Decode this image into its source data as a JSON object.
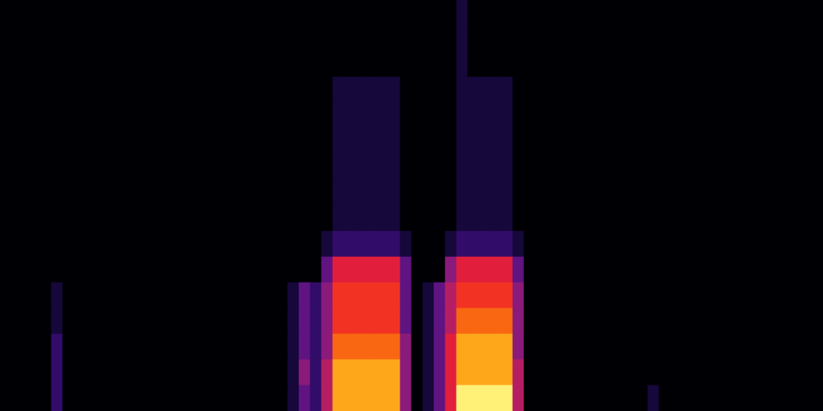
{
  "chart_data": {
    "type": "heatmap",
    "xlim": [
      0,
      64
    ],
    "ylim": [
      0,
      16
    ],
    "grid": false,
    "tick_labels": false,
    "color_range": [
      0,
      10
    ],
    "z": [
      [
        2,
        0,
        0,
        0,
        0,
        0,
        0,
        0,
        0,
        0,
        0,
        0,
        0,
        0,
        0,
        0,
        0,
        0,
        0,
        0,
        0,
        1,
        3,
        2,
        5,
        9,
        9,
        9,
        9,
        9,
        9,
        4,
        0,
        1,
        3,
        6,
        10,
        10,
        10,
        10,
        10,
        5,
        0,
        0,
        0,
        0,
        0,
        0,
        0,
        0,
        0,
        0,
        0,
        1,
        0,
        0,
        0,
        0,
        0,
        0,
        0,
        0,
        0,
        0
      ],
      [
        2,
        0,
        0,
        0,
        0,
        0,
        0,
        0,
        0,
        0,
        0,
        0,
        0,
        0,
        0,
        0,
        0,
        0,
        0,
        0,
        0,
        1,
        4,
        2,
        5,
        9,
        9,
        9,
        9,
        9,
        9,
        4,
        0,
        1,
        3,
        6,
        9,
        9,
        9,
        9,
        9,
        5,
        0,
        0,
        0,
        0,
        0,
        0,
        0,
        0,
        0,
        0,
        0,
        0,
        0,
        0,
        0,
        0,
        0,
        0,
        0,
        0,
        0,
        0
      ],
      [
        2,
        0,
        0,
        0,
        0,
        0,
        0,
        0,
        0,
        0,
        0,
        0,
        0,
        0,
        0,
        0,
        0,
        0,
        0,
        0,
        0,
        1,
        3,
        2,
        4,
        8,
        8,
        8,
        8,
        8,
        8,
        4,
        0,
        1,
        3,
        6,
        9,
        9,
        9,
        9,
        9,
        4,
        0,
        0,
        0,
        0,
        0,
        0,
        0,
        0,
        0,
        0,
        0,
        0,
        0,
        0,
        0,
        0,
        0,
        0,
        0,
        0,
        0,
        0
      ],
      [
        1,
        0,
        0,
        0,
        0,
        0,
        0,
        0,
        0,
        0,
        0,
        0,
        0,
        0,
        0,
        0,
        0,
        0,
        0,
        0,
        0,
        1,
        3,
        2,
        4,
        7,
        7,
        7,
        7,
        7,
        7,
        3,
        0,
        1,
        3,
        5,
        8,
        8,
        8,
        8,
        8,
        4,
        0,
        0,
        0,
        0,
        0,
        0,
        0,
        0,
        0,
        0,
        0,
        0,
        0,
        0,
        0,
        0,
        0,
        0,
        0,
        0,
        0,
        0
      ],
      [
        1,
        0,
        0,
        0,
        0,
        0,
        0,
        0,
        0,
        0,
        0,
        0,
        0,
        0,
        0,
        0,
        0,
        0,
        0,
        0,
        0,
        1,
        3,
        2,
        4,
        7,
        7,
        7,
        7,
        7,
        7,
        3,
        0,
        1,
        3,
        5,
        7,
        7,
        7,
        7,
        7,
        4,
        0,
        0,
        0,
        0,
        0,
        0,
        0,
        0,
        0,
        0,
        0,
        0,
        0,
        0,
        0,
        0,
        0,
        0,
        0,
        0,
        0,
        0
      ],
      [
        0,
        0,
        0,
        0,
        0,
        0,
        0,
        0,
        0,
        0,
        0,
        0,
        0,
        0,
        0,
        0,
        0,
        0,
        0,
        0,
        0,
        0,
        0,
        0,
        3,
        6,
        6,
        6,
        6,
        6,
        6,
        3,
        0,
        0,
        0,
        4,
        6,
        6,
        6,
        6,
        6,
        3,
        0,
        0,
        0,
        0,
        0,
        0,
        0,
        0,
        0,
        0,
        0,
        0,
        0,
        0,
        0,
        0,
        0,
        0,
        0,
        0,
        0,
        0
      ],
      [
        0,
        0,
        0,
        0,
        0,
        0,
        0,
        0,
        0,
        0,
        0,
        0,
        0,
        0,
        0,
        0,
        0,
        0,
        0,
        0,
        0,
        0,
        0,
        0,
        1,
        2,
        2,
        2,
        2,
        2,
        2,
        1,
        0,
        0,
        0,
        1,
        2,
        2,
        2,
        2,
        2,
        1,
        0,
        0,
        0,
        0,
        0,
        0,
        0,
        0,
        0,
        0,
        0,
        0,
        0,
        0,
        0,
        0,
        0,
        0,
        0,
        0,
        0,
        0
      ],
      [
        0,
        0,
        0,
        0,
        0,
        0,
        0,
        0,
        0,
        0,
        0,
        0,
        0,
        0,
        0,
        0,
        0,
        0,
        0,
        0,
        0,
        0,
        0,
        0,
        0,
        1,
        1,
        1,
        1,
        1,
        1,
        0,
        0,
        0,
        0,
        0,
        1,
        1,
        1,
        1,
        1,
        0,
        0,
        0,
        0,
        0,
        0,
        0,
        0,
        0,
        0,
        0,
        0,
        0,
        0,
        0,
        0,
        0,
        0,
        0,
        0,
        0,
        0,
        0
      ],
      [
        0,
        0,
        0,
        0,
        0,
        0,
        0,
        0,
        0,
        0,
        0,
        0,
        0,
        0,
        0,
        0,
        0,
        0,
        0,
        0,
        0,
        0,
        0,
        0,
        0,
        1,
        1,
        1,
        1,
        1,
        1,
        0,
        0,
        0,
        0,
        0,
        1,
        1,
        1,
        1,
        1,
        0,
        0,
        0,
        0,
        0,
        0,
        0,
        0,
        0,
        0,
        0,
        0,
        0,
        0,
        0,
        0,
        0,
        0,
        0,
        0,
        0,
        0,
        0
      ],
      [
        0,
        0,
        0,
        0,
        0,
        0,
        0,
        0,
        0,
        0,
        0,
        0,
        0,
        0,
        0,
        0,
        0,
        0,
        0,
        0,
        0,
        0,
        0,
        0,
        0,
        1,
        1,
        1,
        1,
        1,
        1,
        0,
        0,
        0,
        0,
        0,
        1,
        1,
        1,
        1,
        1,
        0,
        0,
        0,
        0,
        0,
        0,
        0,
        0,
        0,
        0,
        0,
        0,
        0,
        0,
        0,
        0,
        0,
        0,
        0,
        0,
        0,
        0,
        0
      ],
      [
        0,
        0,
        0,
        0,
        0,
        0,
        0,
        0,
        0,
        0,
        0,
        0,
        0,
        0,
        0,
        0,
        0,
        0,
        0,
        0,
        0,
        0,
        0,
        0,
        0,
        1,
        1,
        1,
        1,
        1,
        1,
        0,
        0,
        0,
        0,
        0,
        1,
        1,
        1,
        1,
        1,
        0,
        0,
        0,
        0,
        0,
        0,
        0,
        0,
        0,
        0,
        0,
        0,
        0,
        0,
        0,
        0,
        0,
        0,
        0,
        0,
        0,
        0,
        0
      ],
      [
        0,
        0,
        0,
        0,
        0,
        0,
        0,
        0,
        0,
        0,
        0,
        0,
        0,
        0,
        0,
        0,
        0,
        0,
        0,
        0,
        0,
        0,
        0,
        0,
        0,
        1,
        1,
        1,
        1,
        1,
        1,
        0,
        0,
        0,
        0,
        0,
        1,
        1,
        1,
        1,
        1,
        0,
        0,
        0,
        0,
        0,
        0,
        0,
        0,
        0,
        0,
        0,
        0,
        0,
        0,
        0,
        0,
        0,
        0,
        0,
        0,
        0,
        0,
        0
      ],
      [
        0,
        0,
        0,
        0,
        0,
        0,
        0,
        0,
        0,
        0,
        0,
        0,
        0,
        0,
        0,
        0,
        0,
        0,
        0,
        0,
        0,
        0,
        0,
        0,
        0,
        1,
        1,
        1,
        1,
        1,
        1,
        0,
        0,
        0,
        0,
        0,
        1,
        1,
        1,
        1,
        1,
        0,
        0,
        0,
        0,
        0,
        0,
        0,
        0,
        0,
        0,
        0,
        0,
        0,
        0,
        0,
        0,
        0,
        0,
        0,
        0,
        0,
        0,
        0
      ],
      [
        0,
        0,
        0,
        0,
        0,
        0,
        0,
        0,
        0,
        0,
        0,
        0,
        0,
        0,
        0,
        0,
        0,
        0,
        0,
        0,
        0,
        0,
        0,
        0,
        0,
        0,
        0,
        0,
        0,
        0,
        0,
        0,
        0,
        0,
        0,
        0,
        1,
        0,
        0,
        0,
        0,
        0,
        0,
        0,
        0,
        0,
        0,
        0,
        0,
        0,
        0,
        0,
        0,
        0,
        0,
        0,
        0,
        0,
        0,
        0,
        0,
        0,
        0,
        0
      ],
      [
        0,
        0,
        0,
        0,
        0,
        0,
        0,
        0,
        0,
        0,
        0,
        0,
        0,
        0,
        0,
        0,
        0,
        0,
        0,
        0,
        0,
        0,
        0,
        0,
        0,
        0,
        0,
        0,
        0,
        0,
        0,
        0,
        0,
        0,
        0,
        0,
        1,
        0,
        0,
        0,
        0,
        0,
        0,
        0,
        0,
        0,
        0,
        0,
        0,
        0,
        0,
        0,
        0,
        0,
        0,
        0,
        0,
        0,
        0,
        0,
        0,
        0,
        0,
        0
      ],
      [
        0,
        0,
        0,
        0,
        0,
        0,
        0,
        0,
        0,
        0,
        0,
        0,
        0,
        0,
        0,
        0,
        0,
        0,
        0,
        0,
        0,
        0,
        0,
        0,
        0,
        0,
        0,
        0,
        0,
        0,
        0,
        0,
        0,
        0,
        0,
        0,
        1,
        0,
        0,
        0,
        0,
        0,
        0,
        0,
        0,
        0,
        0,
        0,
        0,
        0,
        0,
        0,
        0,
        0,
        0,
        0,
        0,
        0,
        0,
        0,
        0,
        0,
        0,
        0
      ]
    ]
  }
}
